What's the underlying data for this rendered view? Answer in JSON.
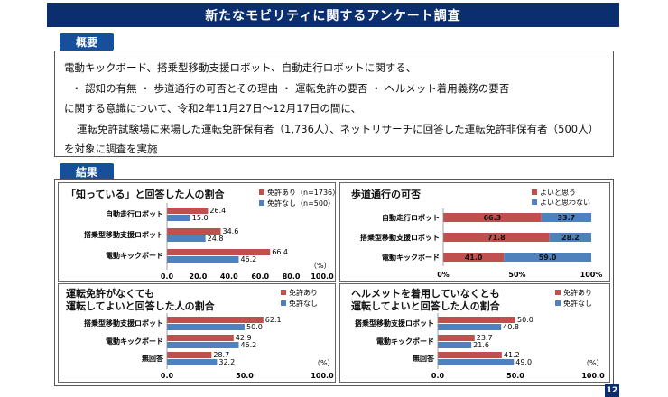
{
  "title": "新たなモビリティに関するアンケート調査",
  "overview": {
    "tab": "概要",
    "lines": [
      "電動キックボード、搭乗型移動支援ロボット、自動走行ロボットに関する、",
      "・ 認知の有無 ・ 歩道通行の可否とその理由 ・ 運転免許の要否 ・ ヘルメット着用義務の要否",
      "に関する意識について、令和2年11月27日～12月17日の間に、",
      "運転免許試験場に来場した運転免許保有者（1,736人）、ネットリサーチに回答した運転免許非保有者（500人）",
      "を対象に調査を実施"
    ]
  },
  "results": {
    "tab": "結果"
  },
  "colors": {
    "red": "#c0504d",
    "blue": "#4f81bd",
    "navy": "#0b2e6e"
  },
  "chart_data": [
    {
      "type": "bar",
      "orientation": "horizontal",
      "title": "「知っている」と回答した人の割合",
      "categories": [
        "自動走行ロボット",
        "搭乗型移動支援ロボット",
        "電動キックボード"
      ],
      "series": [
        {
          "name": "免許あり（n=1736）",
          "values": [
            26.4,
            34.6,
            66.4
          ]
        },
        {
          "name": "免許なし（n=500）",
          "values": [
            15.0,
            24.8,
            46.2
          ]
        }
      ],
      "xlim": [
        0,
        100
      ],
      "xticks": [
        "0.0",
        "20.0",
        "40.0",
        "60.0",
        "80.0",
        "100.0"
      ],
      "unit": "（%）",
      "legend": "top-right"
    },
    {
      "type": "bar",
      "orientation": "horizontal",
      "stacked": true,
      "title": "歩道通行の可否",
      "categories": [
        "自動走行ロボット",
        "搭乗型移動支援ロボット",
        "電動キックボード"
      ],
      "series": [
        {
          "name": "よいと思う",
          "values": [
            66.3,
            71.8,
            41.0
          ]
        },
        {
          "name": "よいと思わない",
          "values": [
            33.7,
            28.2,
            59.0
          ]
        }
      ],
      "xlim": [
        0,
        100
      ],
      "xticks": [
        "0%",
        "50%",
        "100%"
      ],
      "legend": "top-right"
    },
    {
      "type": "bar",
      "orientation": "horizontal",
      "title": "運転免許がなくても\n運転してよいと回答した人の割合",
      "categories": [
        "搭乗型移動支援ロボット",
        "電動キックボード",
        "無回答"
      ],
      "series": [
        {
          "name": "免許あり",
          "values": [
            62.1,
            42.9,
            28.7
          ]
        },
        {
          "name": "免許なし",
          "values": [
            50.0,
            46.2,
            32.2
          ]
        }
      ],
      "xlim": [
        0,
        100
      ],
      "xticks": [
        "0.0",
        "50.0",
        "100.0"
      ],
      "unit": "（%）",
      "legend": "top-right"
    },
    {
      "type": "bar",
      "orientation": "horizontal",
      "title": "ヘルメットを着用していなくとも\n運転してよいと回答した人の割合",
      "categories": [
        "搭乗型移動支援ロボット",
        "電動キックボード",
        "無回答"
      ],
      "series": [
        {
          "name": "免許あり",
          "values": [
            50.0,
            23.7,
            41.2
          ]
        },
        {
          "name": "免許なし",
          "values": [
            40.8,
            21.6,
            49.0
          ]
        }
      ],
      "xlim": [
        0,
        100
      ],
      "xticks": [
        "0.0",
        "50.0",
        "100.0"
      ],
      "unit": "（%）",
      "legend": "top-right"
    }
  ],
  "page_number": "12"
}
